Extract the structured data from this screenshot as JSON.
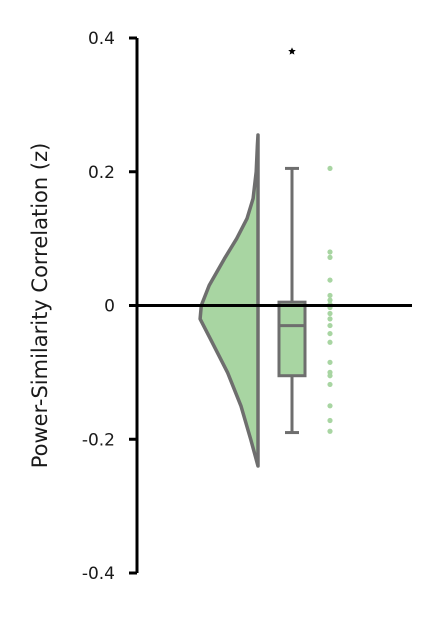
{
  "chart_data": {
    "type": "raincloud",
    "ylabel": "Power-Similarity Correlation (z)",
    "ylim": [
      -0.4,
      0.4
    ],
    "y_ticks": [
      0.4,
      0.2,
      0,
      -0.2,
      -0.4
    ],
    "y_tick_labels": [
      "0.4",
      "0.2",
      "0",
      "-0.2",
      "-0.4"
    ],
    "zero_line": true,
    "grid": false,
    "legend": "none",
    "colors": {
      "fill": "#a8d5a2",
      "outline": "#6e6e6e",
      "points": "#a8d5a2",
      "axis": "#000000",
      "outlier": "#000000"
    },
    "violin": {
      "half": "left",
      "min": -0.24,
      "max": 0.255,
      "density_profile": [
        [
          -0.24,
          0.0
        ],
        [
          -0.2,
          0.12
        ],
        [
          -0.15,
          0.28
        ],
        [
          -0.1,
          0.5
        ],
        [
          -0.05,
          0.78
        ],
        [
          -0.02,
          0.95
        ],
        [
          0.0,
          0.93
        ],
        [
          0.03,
          0.8
        ],
        [
          0.07,
          0.55
        ],
        [
          0.1,
          0.35
        ],
        [
          0.13,
          0.18
        ],
        [
          0.16,
          0.08
        ],
        [
          0.2,
          0.03
        ],
        [
          0.24,
          0.01
        ],
        [
          0.255,
          0.0
        ]
      ]
    },
    "boxplot": {
      "whisker_low": -0.19,
      "q1": -0.105,
      "median": -0.03,
      "q3": 0.005,
      "whisker_high": 0.205,
      "outliers": [
        0.38
      ]
    },
    "points": [
      0.205,
      0.08,
      0.072,
      0.038,
      0.015,
      0.008,
      0.002,
      -0.003,
      -0.012,
      -0.02,
      -0.03,
      -0.042,
      -0.055,
      -0.085,
      -0.1,
      -0.105,
      -0.118,
      -0.15,
      -0.172,
      -0.188
    ]
  }
}
